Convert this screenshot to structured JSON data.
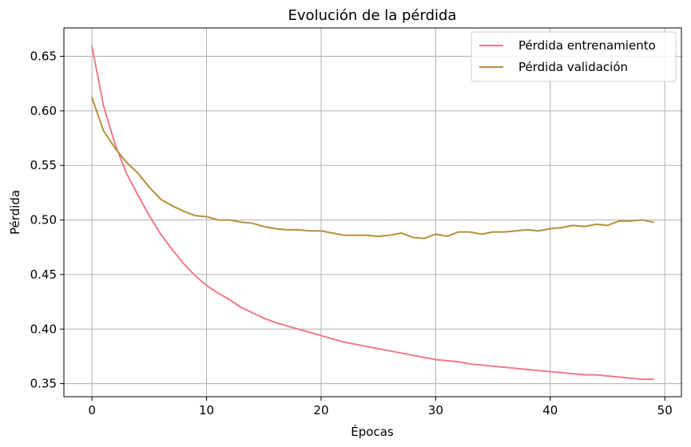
{
  "chart_data": {
    "type": "line",
    "title": "Evolución de la pérdida",
    "xlabel": "Épocas",
    "ylabel": "Pérdida",
    "xlim": [
      -2.45,
      51.45
    ],
    "ylim": [
      0.338,
      0.676
    ],
    "xticks": [
      0,
      10,
      20,
      30,
      40,
      50
    ],
    "yticks": [
      0.35,
      0.4,
      0.45,
      0.5,
      0.55,
      0.6,
      0.65
    ],
    "ytick_labels": [
      "0.35",
      "0.40",
      "0.45",
      "0.50",
      "0.55",
      "0.60",
      "0.65"
    ],
    "grid": true,
    "legend_position": "top-right",
    "x": [
      0,
      1,
      2,
      3,
      4,
      5,
      6,
      7,
      8,
      9,
      10,
      11,
      12,
      13,
      14,
      15,
      16,
      17,
      18,
      19,
      20,
      21,
      22,
      23,
      24,
      25,
      26,
      27,
      28,
      29,
      30,
      31,
      32,
      33,
      34,
      35,
      36,
      37,
      38,
      39,
      40,
      41,
      42,
      43,
      44,
      45,
      46,
      47,
      48,
      49
    ],
    "series": [
      {
        "name": "Pérdida entrenamiento",
        "color": "#f07a8a",
        "values": [
          0.659,
          0.605,
          0.57,
          0.543,
          0.523,
          0.504,
          0.487,
          0.473,
          0.46,
          0.449,
          0.44,
          0.433,
          0.427,
          0.42,
          0.415,
          0.41,
          0.406,
          0.403,
          0.4,
          0.397,
          0.394,
          0.391,
          0.388,
          0.386,
          0.384,
          0.382,
          0.38,
          0.378,
          0.376,
          0.374,
          0.372,
          0.371,
          0.37,
          0.368,
          0.367,
          0.366,
          0.365,
          0.364,
          0.363,
          0.362,
          0.361,
          0.36,
          0.359,
          0.358,
          0.358,
          0.357,
          0.356,
          0.355,
          0.354,
          0.354
        ]
      },
      {
        "name": "Pérdida validación",
        "color": "#b5903a",
        "values": [
          0.612,
          0.582,
          0.566,
          0.553,
          0.543,
          0.53,
          0.519,
          0.513,
          0.508,
          0.504,
          0.503,
          0.5,
          0.5,
          0.498,
          0.497,
          0.494,
          0.492,
          0.491,
          0.491,
          0.49,
          0.49,
          0.488,
          0.486,
          0.486,
          0.486,
          0.485,
          0.486,
          0.488,
          0.484,
          0.483,
          0.487,
          0.485,
          0.489,
          0.489,
          0.487,
          0.489,
          0.489,
          0.49,
          0.491,
          0.49,
          0.492,
          0.493,
          0.495,
          0.494,
          0.496,
          0.495,
          0.499,
          0.499,
          0.5,
          0.498
        ]
      }
    ]
  }
}
